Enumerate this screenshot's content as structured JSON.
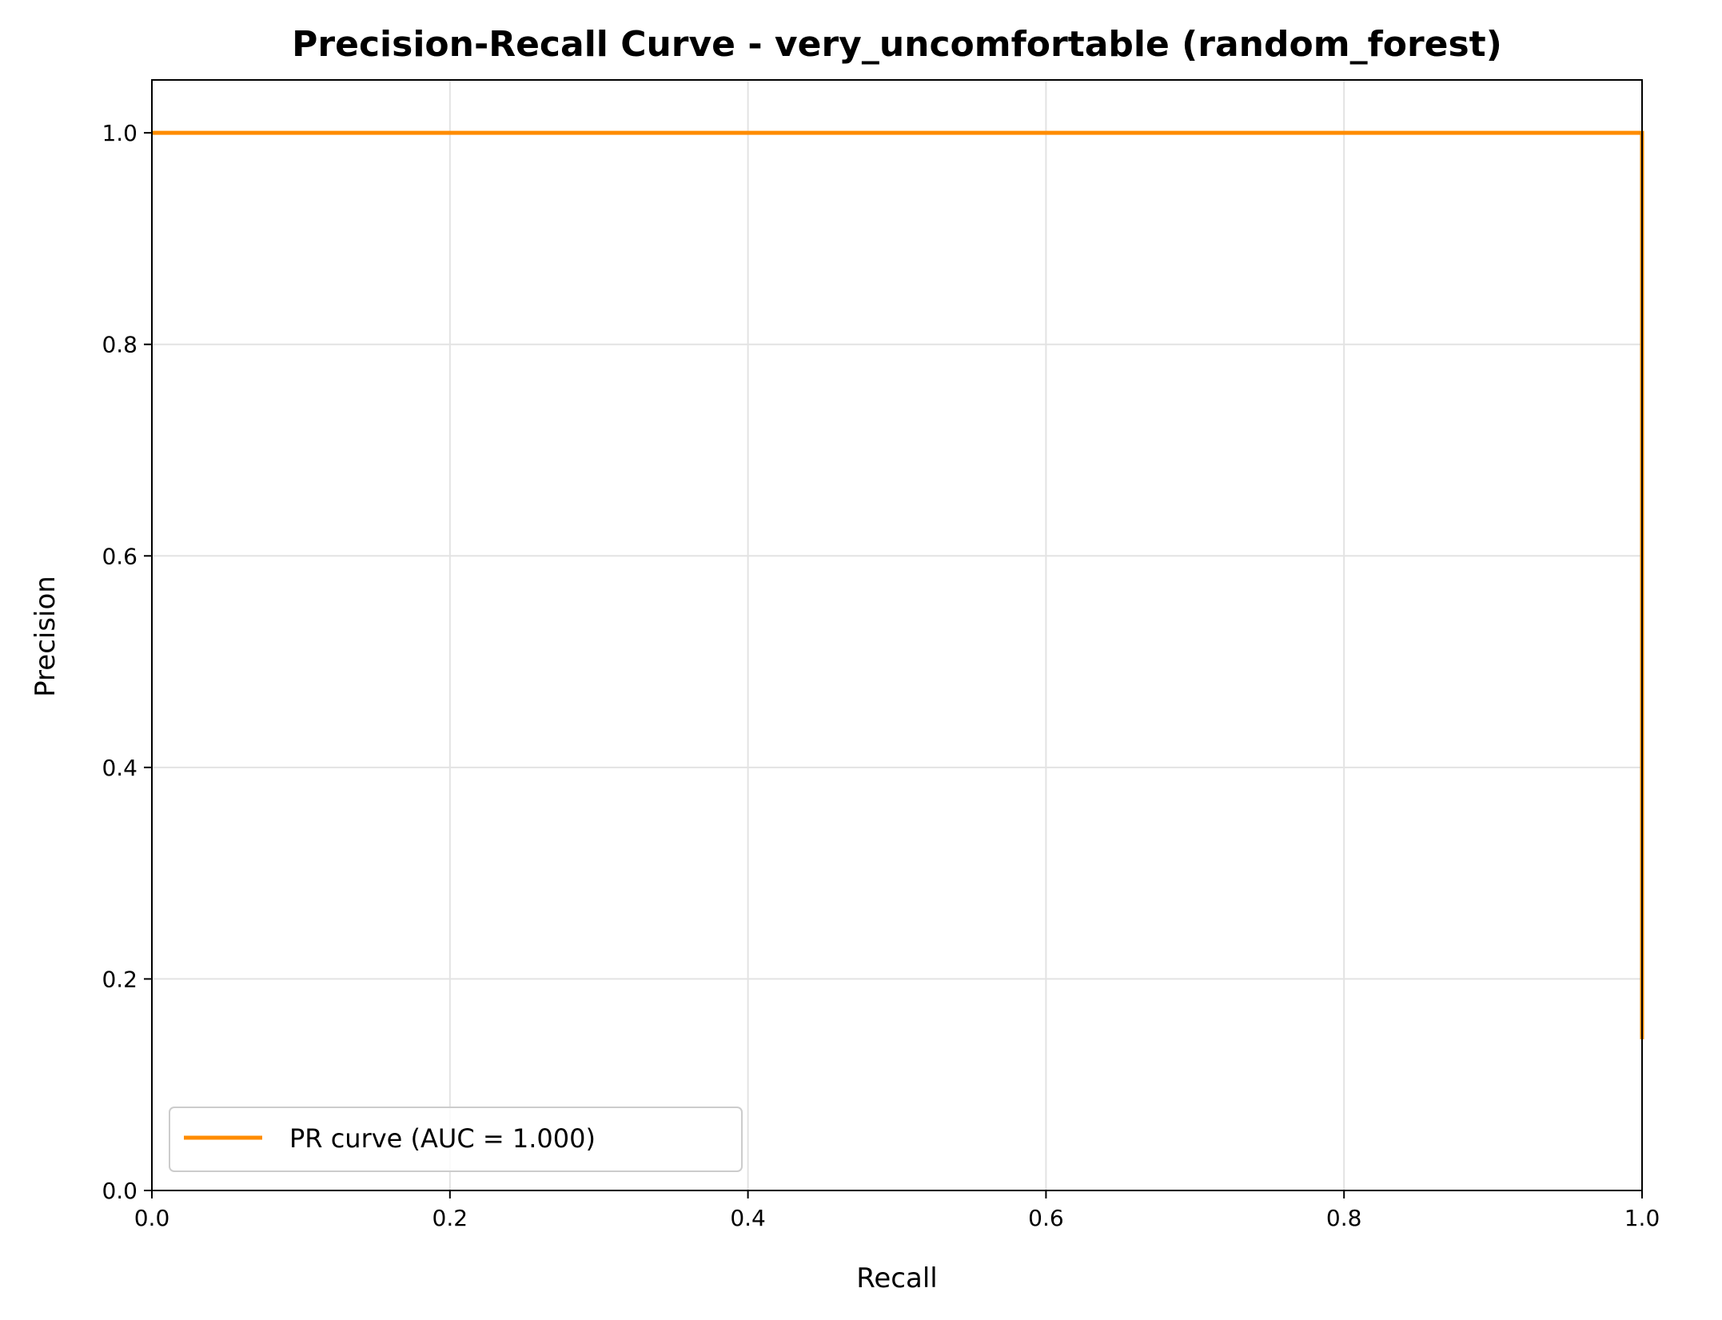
{
  "chart_data": {
    "type": "line",
    "title": "Precision-Recall Curve - very_uncomfortable (random_forest)",
    "xlabel": "Recall",
    "ylabel": "Precision",
    "xlim": [
      0.0,
      1.0
    ],
    "ylim": [
      0.0,
      1.05
    ],
    "xticks": [
      0.0,
      0.2,
      0.4,
      0.6,
      0.8,
      1.0
    ],
    "yticks": [
      0.0,
      0.2,
      0.4,
      0.6,
      0.8,
      1.0
    ],
    "xtick_labels": [
      "0.0",
      "0.2",
      "0.4",
      "0.6",
      "0.8",
      "1.0"
    ],
    "ytick_labels": [
      "0.0",
      "0.2",
      "0.4",
      "0.6",
      "0.8",
      "1.0"
    ],
    "grid": true,
    "legend_position": "lower-left",
    "series": [
      {
        "name": "PR curve (AUC = 1.000)",
        "color": "#ff8c00",
        "x": [
          0.0,
          1.0,
          1.0
        ],
        "y": [
          1.0,
          1.0,
          0.143
        ]
      }
    ]
  }
}
